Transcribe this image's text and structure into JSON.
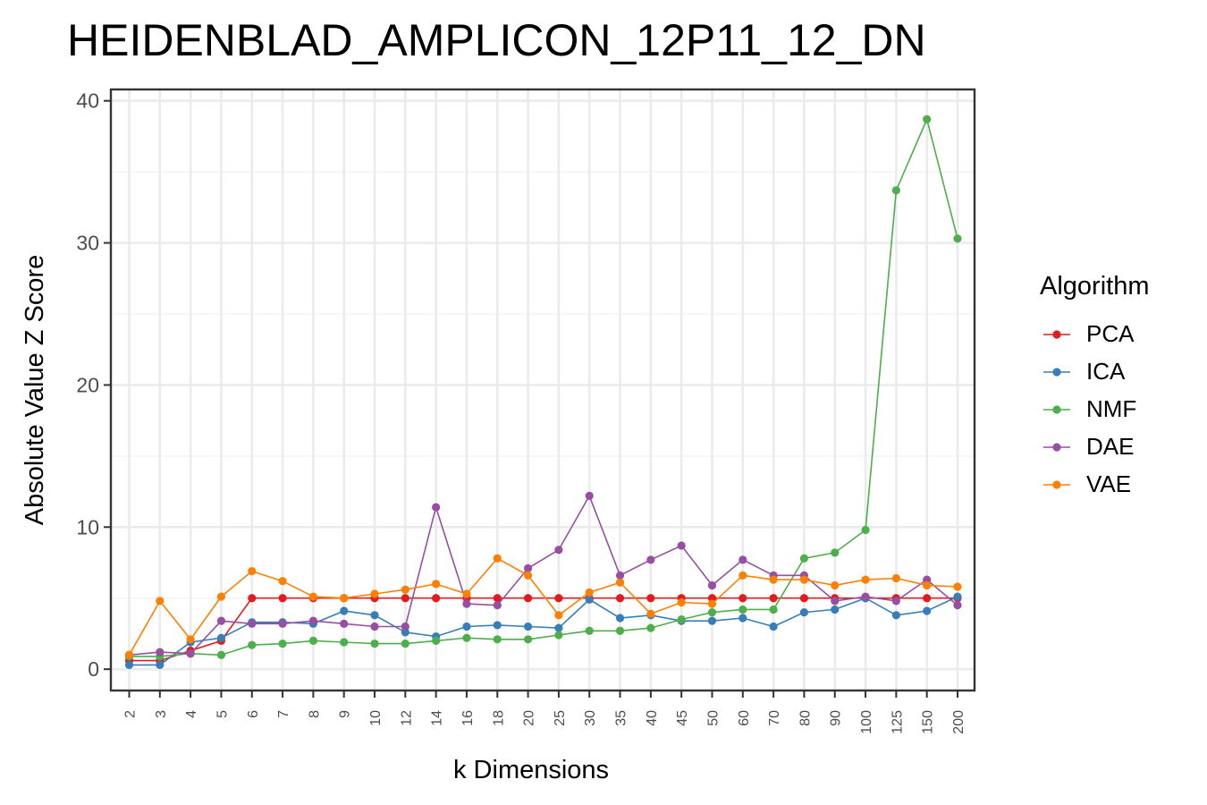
{
  "chart_data": {
    "type": "line",
    "title": "HEIDENBLAD_AMPLICON_12P11_12_DN",
    "xlabel": "k Dimensions",
    "ylabel": "Absolute Value Z Score",
    "categories": [
      "2",
      "3",
      "4",
      "5",
      "6",
      "7",
      "8",
      "9",
      "10",
      "12",
      "14",
      "16",
      "18",
      "20",
      "25",
      "30",
      "35",
      "40",
      "45",
      "50",
      "60",
      "70",
      "80",
      "90",
      "100",
      "125",
      "150",
      "200"
    ],
    "ylim": [
      -1.5,
      40.8
    ],
    "yticks": [
      0,
      10,
      20,
      30,
      40
    ],
    "grid": true,
    "legend_title": "Algorithm",
    "legend_position": "right",
    "series": [
      {
        "name": "PCA",
        "color": "#E41A1C",
        "values": [
          0.6,
          0.6,
          1.3,
          2.0,
          5.0,
          5.0,
          5.0,
          5.0,
          5.0,
          5.0,
          5.0,
          5.0,
          5.0,
          5.0,
          5.0,
          5.0,
          5.0,
          5.0,
          5.0,
          5.0,
          5.0,
          5.0,
          5.0,
          5.0,
          5.0,
          5.0,
          5.0,
          5.0
        ]
      },
      {
        "name": "ICA",
        "color": "#377EB8",
        "values": [
          0.3,
          0.3,
          1.9,
          2.2,
          3.3,
          3.3,
          3.2,
          4.1,
          3.8,
          2.6,
          2.3,
          3.0,
          3.1,
          3.0,
          2.9,
          4.9,
          3.6,
          3.8,
          3.4,
          3.4,
          3.6,
          3.0,
          4.0,
          4.2,
          5.0,
          3.8,
          4.1,
          5.1
        ]
      },
      {
        "name": "NMF",
        "color": "#4DAF4A",
        "values": [
          0.9,
          0.9,
          1.1,
          1.0,
          1.7,
          1.8,
          2.0,
          1.9,
          1.8,
          1.8,
          2.0,
          2.2,
          2.1,
          2.1,
          2.4,
          2.7,
          2.7,
          2.9,
          3.5,
          4.0,
          4.2,
          4.2,
          7.8,
          8.2,
          9.8,
          33.7,
          38.7,
          30.3
        ]
      },
      {
        "name": "DAE",
        "color": "#984EA3",
        "values": [
          1.0,
          1.2,
          1.1,
          3.4,
          3.2,
          3.2,
          3.4,
          3.2,
          3.0,
          3.0,
          11.4,
          4.6,
          4.5,
          7.1,
          8.4,
          12.2,
          6.6,
          7.7,
          8.7,
          5.9,
          7.7,
          6.6,
          6.6,
          4.8,
          5.1,
          4.8,
          6.3,
          4.5
        ]
      },
      {
        "name": "VAE",
        "color": "#FF7F00",
        "values": [
          1.0,
          4.8,
          2.1,
          5.1,
          6.9,
          6.2,
          5.1,
          5.0,
          5.3,
          5.6,
          6.0,
          5.3,
          7.8,
          6.6,
          3.8,
          5.4,
          6.1,
          3.9,
          4.7,
          4.6,
          6.6,
          6.3,
          6.3,
          5.9,
          6.3,
          6.4,
          5.9,
          5.8
        ]
      }
    ]
  }
}
